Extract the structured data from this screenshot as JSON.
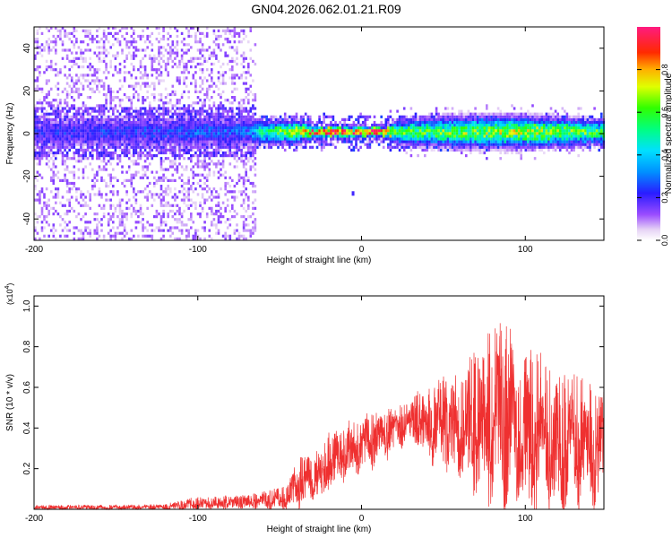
{
  "figure": {
    "title": "GN04.2026.062.01.21.R09"
  },
  "chart_data": [
    {
      "type": "heatmap",
      "title": "GN04.2026.062.01.21.R09",
      "xlabel": "Height of straight line (km)",
      "ylabel": "Frequency (Hz)",
      "xlim": [
        -200,
        148
      ],
      "ylim": [
        -50,
        50
      ],
      "x_ticks": [
        -200,
        -100,
        0,
        100
      ],
      "y_ticks": [
        -40,
        -20,
        0,
        20,
        40
      ],
      "x_tick_labels": [
        "-200",
        "-100",
        "0",
        "100"
      ],
      "y_tick_labels": [
        "-40",
        "-20",
        "0",
        "20",
        "40"
      ],
      "grid": false,
      "colorbar": {
        "label": "Normalized spectral amplitude",
        "range": [
          0,
          1
        ],
        "ticks": [
          0,
          0.2,
          0.4,
          0.6,
          0.8
        ],
        "tick_labels": [
          "0.0",
          "0.2",
          "0.4",
          "0.6",
          "0.8"
        ],
        "placement": "right"
      },
      "regions": [
        {
          "x_range": [
            -200,
            -65
          ],
          "description_level": 0.15,
          "freq_spread": 50
        },
        {
          "x_range": [
            -65,
            148
          ],
          "description_level": 0.6,
          "freq_spread": 8
        }
      ],
      "band_profile": [
        {
          "x": -200,
          "peak": 0.22,
          "width": 4
        },
        {
          "x": -150,
          "peak": 0.25,
          "width": 4
        },
        {
          "x": -100,
          "peak": 0.28,
          "width": 4
        },
        {
          "x": -70,
          "peak": 0.3,
          "width": 4
        },
        {
          "x": -60,
          "peak": 0.55,
          "width": 3
        },
        {
          "x": -40,
          "peak": 0.7,
          "width": 3
        },
        {
          "x": -30,
          "peak": 0.95,
          "width": 1.5
        },
        {
          "x": 0,
          "peak": 0.95,
          "width": 1.5
        },
        {
          "x": 15,
          "peak": 0.95,
          "width": 1.5
        },
        {
          "x": 20,
          "peak": 0.6,
          "width": 3
        },
        {
          "x": 60,
          "peak": 0.65,
          "width": 4
        },
        {
          "x": 100,
          "peak": 0.7,
          "width": 4
        },
        {
          "x": 148,
          "peak": 0.6,
          "width": 3
        }
      ]
    },
    {
      "type": "line",
      "title": "",
      "xlabel": "Height of straight line (km)",
      "ylabel": "SNR (10 * v/v)",
      "y_multiplier": "(x10",
      "y_multiplier_exp": "4",
      "y_multiplier_close": ")",
      "xlim": [
        -200,
        148
      ],
      "ylim": [
        0,
        1.05
      ],
      "x_ticks": [
        -200,
        -100,
        0,
        100
      ],
      "y_ticks": [
        0.2,
        0.4,
        0.6,
        0.8,
        1.0
      ],
      "x_tick_labels": [
        "-200",
        "-100",
        "0",
        "100"
      ],
      "y_tick_labels": [
        "0.2",
        "0.4",
        "0.6",
        "0.8",
        "1.0"
      ],
      "grid": false,
      "series": [
        {
          "color": "#ef3030",
          "envelope": [
            {
              "x": -200,
              "low": 0.0,
              "high": 0.02
            },
            {
              "x": -120,
              "low": 0.0,
              "high": 0.025
            },
            {
              "x": -105,
              "low": 0.0,
              "high": 0.06
            },
            {
              "x": -70,
              "low": 0.01,
              "high": 0.07
            },
            {
              "x": -45,
              "low": 0.01,
              "high": 0.12
            },
            {
              "x": -40,
              "low": 0.03,
              "high": 0.25
            },
            {
              "x": -25,
              "low": 0.05,
              "high": 0.3
            },
            {
              "x": -20,
              "low": 0.12,
              "high": 0.38
            },
            {
              "x": -5,
              "low": 0.2,
              "high": 0.45
            },
            {
              "x": 10,
              "low": 0.25,
              "high": 0.5
            },
            {
              "x": 30,
              "low": 0.35,
              "high": 0.52
            },
            {
              "x": 35,
              "low": 0.3,
              "high": 0.6
            },
            {
              "x": 60,
              "low": 0.2,
              "high": 0.7
            },
            {
              "x": 85,
              "low": 0.05,
              "high": 0.95
            },
            {
              "x": 100,
              "low": 0.05,
              "high": 0.85
            },
            {
              "x": 120,
              "low": 0.06,
              "high": 0.7
            },
            {
              "x": 148,
              "low": 0.08,
              "high": 0.6
            }
          ]
        }
      ]
    }
  ]
}
